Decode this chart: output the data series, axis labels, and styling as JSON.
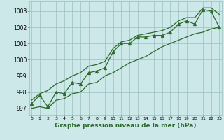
{
  "x": [
    0,
    1,
    2,
    3,
    4,
    5,
    6,
    7,
    8,
    9,
    10,
    11,
    12,
    13,
    14,
    15,
    16,
    17,
    18,
    19,
    20,
    21,
    22,
    23
  ],
  "y_main": [
    997.3,
    997.8,
    997.1,
    998.0,
    997.9,
    998.6,
    998.5,
    999.2,
    999.3,
    999.5,
    1000.5,
    1001.0,
    1001.0,
    1001.4,
    1001.4,
    1001.5,
    1001.5,
    1001.7,
    1002.2,
    1002.4,
    1002.2,
    1003.1,
    1003.0,
    1002.0
  ],
  "y_upper": [
    997.5,
    997.9,
    998.1,
    998.5,
    998.7,
    999.0,
    999.2,
    999.6,
    999.7,
    999.9,
    1000.7,
    1001.1,
    1001.2,
    1001.5,
    1001.6,
    1001.7,
    1001.8,
    1002.0,
    1002.4,
    1002.6,
    1002.6,
    1003.2,
    1003.2,
    1002.8
  ],
  "y_lower": [
    997.0,
    997.1,
    997.0,
    997.5,
    997.6,
    997.9,
    998.0,
    998.5,
    998.6,
    999.0,
    999.2,
    999.5,
    999.8,
    1000.0,
    1000.2,
    1000.5,
    1000.8,
    1001.0,
    1001.2,
    1001.4,
    1001.6,
    1001.7,
    1001.9,
    1002.0
  ],
  "line_color": "#2d6a2d",
  "bg_color": "#cce8e8",
  "grid_color": "#9bbfbf",
  "ylabel_ticks": [
    997,
    998,
    999,
    1000,
    1001,
    1002,
    1003
  ],
  "xlabel": "Graphe pression niveau de la mer (hPa)",
  "ylim": [
    996.6,
    1003.6
  ],
  "xlim": [
    -0.3,
    23.3
  ]
}
